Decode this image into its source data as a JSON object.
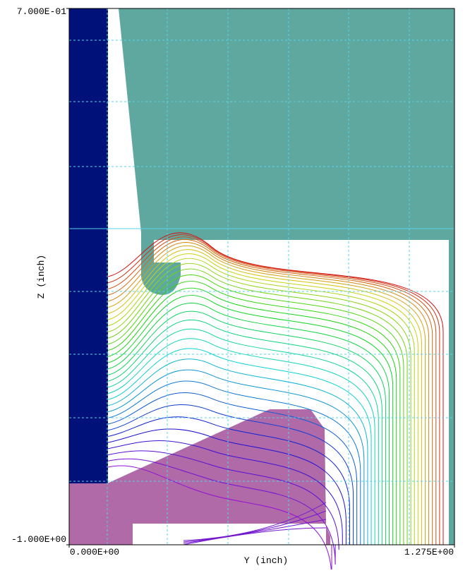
{
  "chart_data": {
    "type": "contour",
    "xlabel": "Y (inch)",
    "ylabel": "Z (inch)",
    "xlim": [
      0,
      1.275
    ],
    "ylim": [
      -1,
      0.7
    ],
    "xticks": [
      {
        "value": 0,
        "label": "0.000E+00"
      },
      {
        "value": 1.275,
        "label": "1.275E+00"
      }
    ],
    "yticks": [
      {
        "value": 0.7,
        "label": "7.000E-01"
      },
      {
        "value": -1,
        "label": "-1.000E+00"
      }
    ]
  }
}
